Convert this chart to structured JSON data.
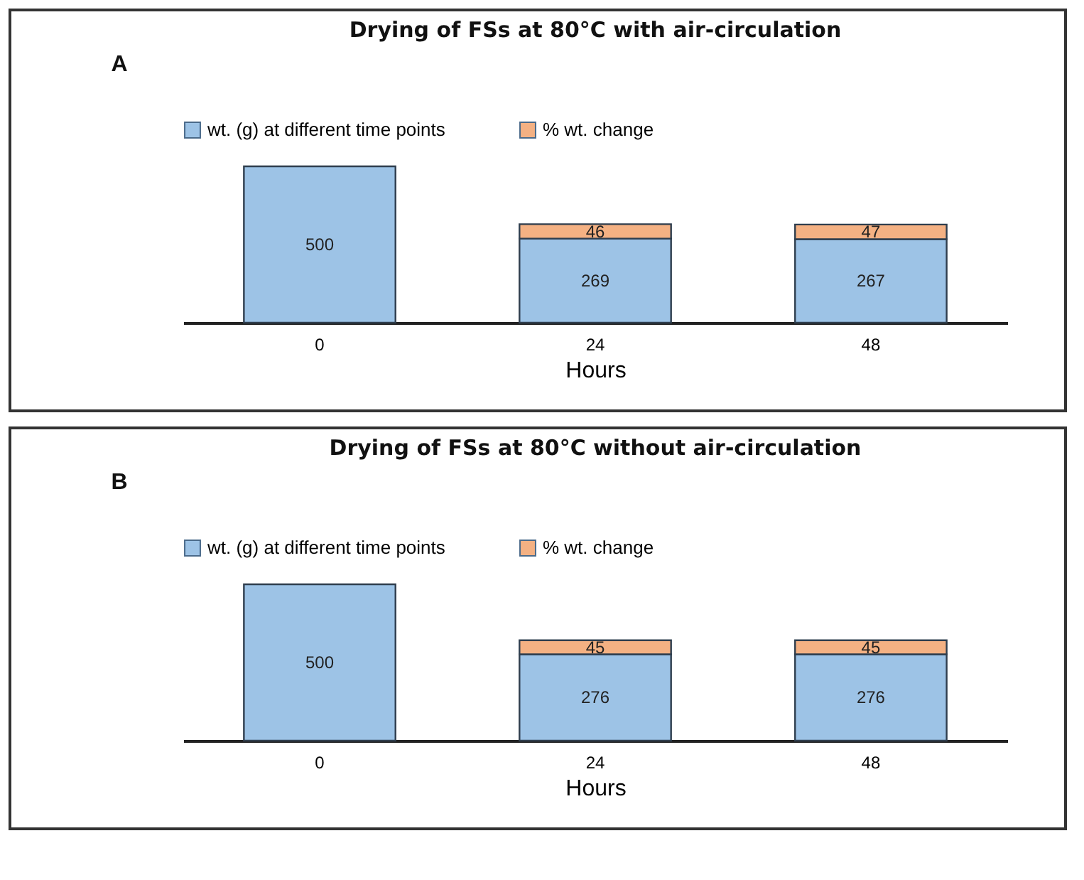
{
  "chart_data": [
    {
      "type": "bar",
      "title": "Drying of FSs at 80°C with air-circulation",
      "xlabel": "Hours",
      "annotations": [
        "A"
      ],
      "categories": [
        "0",
        "24",
        "48"
      ],
      "stacked": true,
      "data_labels": true,
      "legend": "top",
      "series": [
        {
          "name": "wt. (g) at different time points",
          "color": "#9dc3e6",
          "values": [
            500,
            269,
            267
          ]
        },
        {
          "name": "% wt. change",
          "color": "#f4b183",
          "values": [
            null,
            46,
            47
          ]
        }
      ]
    },
    {
      "type": "bar",
      "title": "Drying of FSs at 80°C without air-circulation",
      "xlabel": "Hours",
      "annotations": [
        "B"
      ],
      "categories": [
        "0",
        "24",
        "48"
      ],
      "stacked": true,
      "data_labels": true,
      "legend": "top",
      "series": [
        {
          "name": "wt. (g) at different time points",
          "color": "#9dc3e6",
          "values": [
            500,
            276,
            276
          ]
        },
        {
          "name": "% wt. change",
          "color": "#f4b183",
          "values": [
            null,
            45,
            45
          ]
        }
      ]
    }
  ]
}
